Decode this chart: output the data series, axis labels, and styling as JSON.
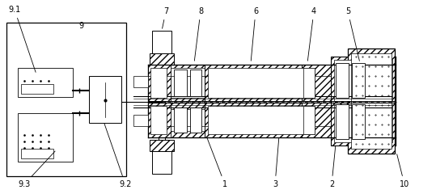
{
  "bg_color": "#ffffff",
  "fig_width": 5.39,
  "fig_height": 2.4,
  "dpi": 100,
  "lw": 0.65
}
